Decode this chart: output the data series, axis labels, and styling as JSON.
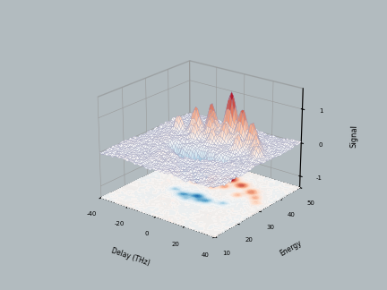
{
  "background_color": "#b2bbbf",
  "colormap": "RdBu_r",
  "figsize": [
    4.32,
    3.24
  ],
  "dpi": 100,
  "elev": 22,
  "azim": -52,
  "n_points": 60,
  "zlabel": "Signal",
  "xlabel": "Delay (THz)",
  "ylabel": "Energy",
  "peaks_pos": [
    [
      0.2,
      2.5,
      0.3,
      0.28,
      1.5
    ],
    [
      -0.8,
      2.0,
      0.25,
      0.25,
      1.0
    ],
    [
      1.2,
      2.2,
      0.28,
      0.26,
      1.1
    ],
    [
      -1.8,
      1.8,
      0.25,
      0.25,
      0.85
    ],
    [
      2.2,
      1.8,
      0.26,
      0.26,
      0.8
    ],
    [
      0.5,
      1.5,
      0.22,
      0.22,
      0.7
    ],
    [
      -0.5,
      1.5,
      0.22,
      0.22,
      0.65
    ],
    [
      2.8,
      1.3,
      0.22,
      0.22,
      0.55
    ],
    [
      -2.8,
      1.5,
      0.2,
      0.2,
      0.5
    ],
    [
      1.8,
      1.0,
      0.2,
      0.2,
      0.55
    ],
    [
      -1.2,
      1.0,
      0.2,
      0.2,
      0.5
    ],
    [
      3.2,
      0.8,
      0.2,
      0.2,
      0.42
    ],
    [
      0.0,
      1.0,
      0.18,
      0.18,
      0.48
    ]
  ],
  "peaks_neg": [
    [
      0.1,
      -0.5,
      0.3,
      0.28,
      -1.1
    ],
    [
      -0.7,
      -0.8,
      0.26,
      0.26,
      -0.9
    ],
    [
      0.9,
      -0.7,
      0.26,
      0.26,
      -0.8
    ],
    [
      -1.5,
      -0.5,
      0.22,
      0.22,
      -0.55
    ],
    [
      1.8,
      -0.4,
      0.22,
      0.22,
      -0.5
    ],
    [
      -0.2,
      -1.2,
      0.2,
      0.2,
      -0.45
    ],
    [
      0.5,
      -1.0,
      0.2,
      0.2,
      -0.4
    ]
  ]
}
